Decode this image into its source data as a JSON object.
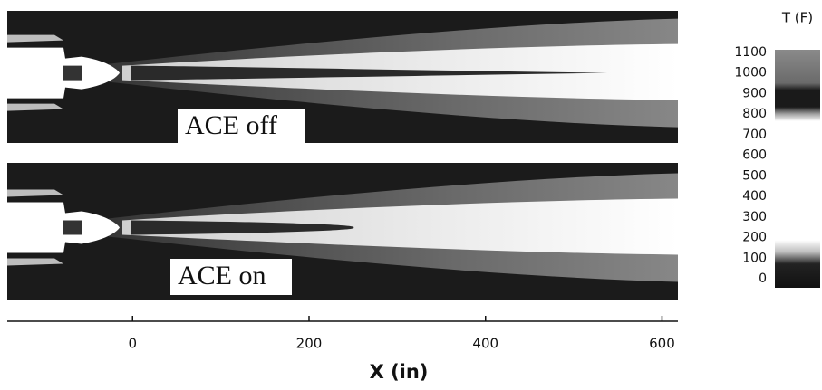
{
  "chart_data": {
    "type": "contour",
    "panels": [
      {
        "label": "ACE off"
      },
      {
        "label": "ACE on"
      }
    ],
    "x_label": "X (in)",
    "xlim": [
      -142,
      618
    ],
    "xticks": [
      0,
      200,
      400,
      600
    ],
    "colorbar": {
      "title": "T (F)",
      "lim": [
        -44,
        1113
      ],
      "ticks": [
        0,
        100,
        200,
        300,
        400,
        500,
        600,
        700,
        800,
        900,
        1000,
        1100
      ]
    }
  }
}
